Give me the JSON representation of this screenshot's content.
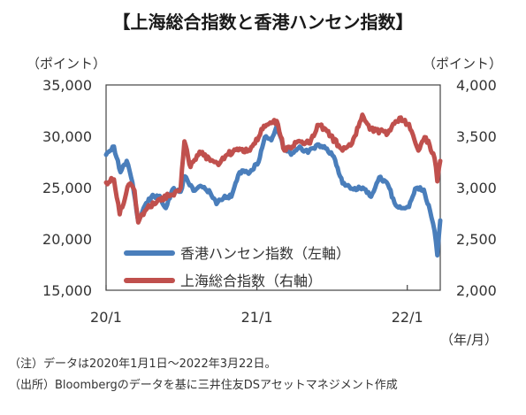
{
  "title": "【上海総合指数と香港ハンセン指数】",
  "notes": [
    "（注）データは2020年1月1日～2022年3月22日。",
    "（出所）Bloombergのデータを基に三井住友DSアセットマネジメント作成"
  ],
  "chart_data": {
    "type": "line",
    "left_axis": {
      "unit_label": "（ポイント）",
      "ylim": [
        15000,
        35000
      ],
      "ticks": [
        "15,000",
        "20,000",
        "25,000",
        "30,000",
        "35,000"
      ],
      "tick_values": [
        15000,
        20000,
        25000,
        30000,
        35000
      ]
    },
    "right_axis": {
      "unit_label": "（ポイント）",
      "ylim": [
        2000,
        4000
      ],
      "ticks": [
        "2,000",
        "2,500",
        "3,000",
        "3,500",
        "4,000"
      ],
      "tick_values": [
        2000,
        2500,
        3000,
        3500,
        4000
      ]
    },
    "x_axis": {
      "unit_label": "（年/月）",
      "range": [
        "2020-01-01",
        "2022-03-22"
      ],
      "ticks": [
        {
          "date": "2020-01-01",
          "label": "20/1"
        },
        {
          "date": "2021-01-01",
          "label": "21/1"
        },
        {
          "date": "2022-01-01",
          "label": "22/1"
        }
      ]
    },
    "grid": "none",
    "legend_position": "bottom-left-inside",
    "series": [
      {
        "name": "香港ハンセン指数（左軸）",
        "axis": "left",
        "color": "#4a7ebb",
        "points": [
          [
            "2020-01-01",
            28200
          ],
          [
            "2020-01-20",
            29000
          ],
          [
            "2020-02-05",
            26500
          ],
          [
            "2020-02-20",
            27600
          ],
          [
            "2020-03-05",
            25500
          ],
          [
            "2020-03-19",
            21700
          ],
          [
            "2020-04-01",
            23000
          ],
          [
            "2020-04-20",
            24100
          ],
          [
            "2020-05-10",
            24200
          ],
          [
            "2020-05-25",
            23000
          ],
          [
            "2020-06-10",
            24800
          ],
          [
            "2020-06-30",
            24600
          ],
          [
            "2020-07-10",
            26100
          ],
          [
            "2020-07-31",
            24700
          ],
          [
            "2020-08-20",
            25100
          ],
          [
            "2020-09-10",
            24500
          ],
          [
            "2020-09-25",
            23400
          ],
          [
            "2020-10-15",
            24200
          ],
          [
            "2020-10-31",
            24100
          ],
          [
            "2020-11-20",
            26500
          ],
          [
            "2020-12-15",
            26500
          ],
          [
            "2021-01-05",
            27500
          ],
          [
            "2021-01-20",
            29900
          ],
          [
            "2021-02-05",
            29600
          ],
          [
            "2021-02-18",
            31000
          ],
          [
            "2021-03-05",
            29100
          ],
          [
            "2021-03-25",
            28200
          ],
          [
            "2021-04-15",
            29000
          ],
          [
            "2021-05-05",
            28400
          ],
          [
            "2021-05-31",
            29200
          ],
          [
            "2021-06-20",
            28800
          ],
          [
            "2021-07-10",
            27700
          ],
          [
            "2021-07-28",
            25400
          ],
          [
            "2021-08-20",
            24900
          ],
          [
            "2021-09-15",
            25000
          ],
          [
            "2021-10-05",
            24100
          ],
          [
            "2021-10-25",
            26000
          ],
          [
            "2021-11-15",
            25300
          ],
          [
            "2021-12-01",
            23500
          ],
          [
            "2021-12-20",
            23000
          ],
          [
            "2022-01-05",
            23100
          ],
          [
            "2022-01-20",
            24900
          ],
          [
            "2022-02-10",
            24800
          ],
          [
            "2022-02-25",
            22800
          ],
          [
            "2022-03-08",
            20800
          ],
          [
            "2022-03-15",
            18400
          ],
          [
            "2022-03-22",
            21800
          ]
        ]
      },
      {
        "name": "上海総合指数（右軸）",
        "axis": "right",
        "color": "#c0504d",
        "points": [
          [
            "2020-01-01",
            3050
          ],
          [
            "2020-01-20",
            3080
          ],
          [
            "2020-02-03",
            2740
          ],
          [
            "2020-02-25",
            3030
          ],
          [
            "2020-03-10",
            2970
          ],
          [
            "2020-03-19",
            2660
          ],
          [
            "2020-04-10",
            2800
          ],
          [
            "2020-05-10",
            2890
          ],
          [
            "2020-06-10",
            2930
          ],
          [
            "2020-06-30",
            3000
          ],
          [
            "2020-07-09",
            3450
          ],
          [
            "2020-07-24",
            3200
          ],
          [
            "2020-08-15",
            3350
          ],
          [
            "2020-09-10",
            3260
          ],
          [
            "2020-09-30",
            3220
          ],
          [
            "2020-10-20",
            3320
          ],
          [
            "2020-11-20",
            3380
          ],
          [
            "2020-12-15",
            3360
          ],
          [
            "2021-01-15",
            3570
          ],
          [
            "2021-02-18",
            3650
          ],
          [
            "2021-03-09",
            3360
          ],
          [
            "2021-04-10",
            3450
          ],
          [
            "2021-05-10",
            3430
          ],
          [
            "2021-05-31",
            3610
          ],
          [
            "2021-06-20",
            3550
          ],
          [
            "2021-07-28",
            3360
          ],
          [
            "2021-08-20",
            3430
          ],
          [
            "2021-09-14",
            3710
          ],
          [
            "2021-10-05",
            3570
          ],
          [
            "2021-11-15",
            3530
          ],
          [
            "2021-12-13",
            3680
          ],
          [
            "2022-01-05",
            3620
          ],
          [
            "2022-01-28",
            3360
          ],
          [
            "2022-02-15",
            3490
          ],
          [
            "2022-03-08",
            3290
          ],
          [
            "2022-03-15",
            3060
          ],
          [
            "2022-03-22",
            3260
          ]
        ]
      }
    ]
  }
}
